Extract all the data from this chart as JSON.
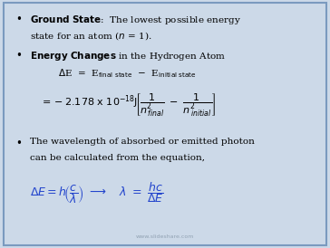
{
  "bg_color": "#ccd9e8",
  "border_color": "#7a9abf",
  "text_color": "#000000",
  "blue_color": "#2244cc",
  "watermark": "www.slideshare.com",
  "figsize": [
    3.64,
    2.74
  ],
  "dpi": 100,
  "fs_main": 7.5,
  "fs_math": 7.5,
  "fs_watermark": 4.5
}
